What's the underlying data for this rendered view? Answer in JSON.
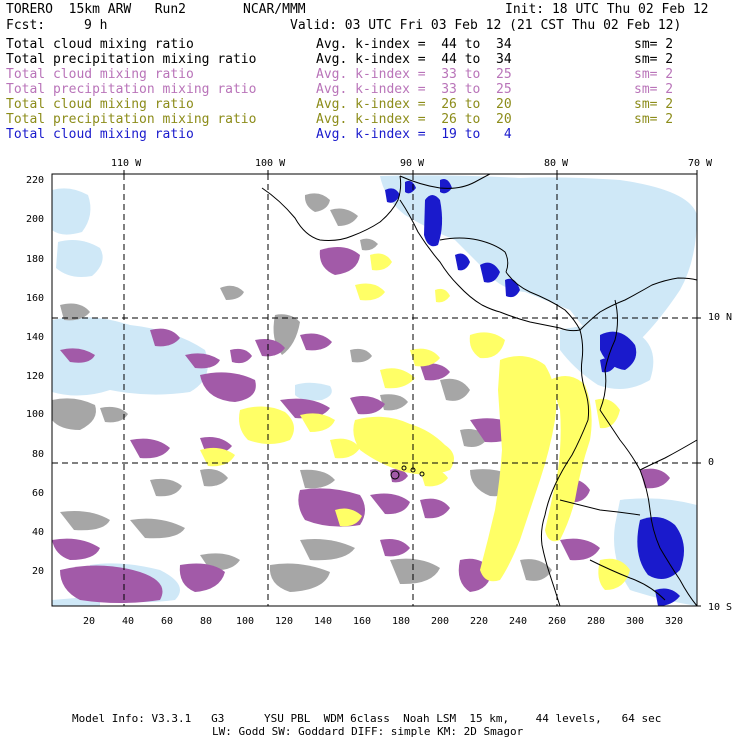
{
  "header": {
    "model": "TORERO  15km ARW   Run2",
    "org": "NCAR/MMM",
    "init": "Init: 18 UTC Thu 02 Feb 12",
    "fcst_label": "Fcst:",
    "fcst_value": "9 h",
    "valid": "Valid: 03 UTC Fri 03 Feb 12 (21 CST Thu 02 Feb 12)"
  },
  "legend": [
    {
      "name": "Total cloud mixing ratio",
      "avg": "Avg. k-index =  44 to  34",
      "sm": "sm= 2",
      "color": "#000000"
    },
    {
      "name": "Total precipitation mixing ratio",
      "avg": "Avg. k-index =  44 to  34",
      "sm": "sm= 2",
      "color": "#000000"
    },
    {
      "name": "Total cloud mixing ratio",
      "avg": "Avg. k-index =  33 to  25",
      "sm": "sm= 2",
      "color": "#b974b9"
    },
    {
      "name": "Total precipitation mixing ratio",
      "avg": "Avg. k-index =  33 to  25",
      "sm": "sm= 2",
      "color": "#b974b9"
    },
    {
      "name": "Total cloud mixing ratio",
      "avg": "Avg. k-index =  26 to  20",
      "sm": "sm= 2",
      "color": "#8c8c1a"
    },
    {
      "name": "Total precipitation mixing ratio",
      "avg": "Avg. k-index =  26 to  20",
      "sm": "sm= 2",
      "color": "#8c8c1a"
    },
    {
      "name": "Total cloud mixing ratio",
      "avg": "Avg. k-index =  19 to   4",
      "sm": "",
      "color": "#1a1acc"
    }
  ],
  "map": {
    "lon_labels": [
      "110 W",
      "100 W",
      "90 W",
      "80 W",
      "70 W"
    ],
    "lat_labels": [
      "10 N",
      "0",
      "10 S"
    ],
    "x_ticks": [
      "20",
      "40",
      "60",
      "80",
      "100",
      "120",
      "140",
      "160",
      "180",
      "200",
      "220",
      "240",
      "260",
      "280",
      "300",
      "320"
    ],
    "y_ticks": [
      "220",
      "200",
      "180",
      "160",
      "140",
      "120",
      "100",
      "80",
      "60",
      "40",
      "20"
    ],
    "colors": {
      "gray": "#a6a6a6",
      "purple": "#a25aa8",
      "yellow": "#ffff66",
      "light_blue": "#cfe8f7",
      "mid_blue": "#7fa6e6",
      "dark_blue": "#1a1acc"
    }
  },
  "footer": {
    "line1": "Model Info: V3.3.1   G3      YSU PBL  WDM 6class  Noah LSM  15 km,    44 levels,   64 sec",
    "line2": "LW: Godd SW: Goddard DIFF: simple KM: 2D Smagor"
  }
}
